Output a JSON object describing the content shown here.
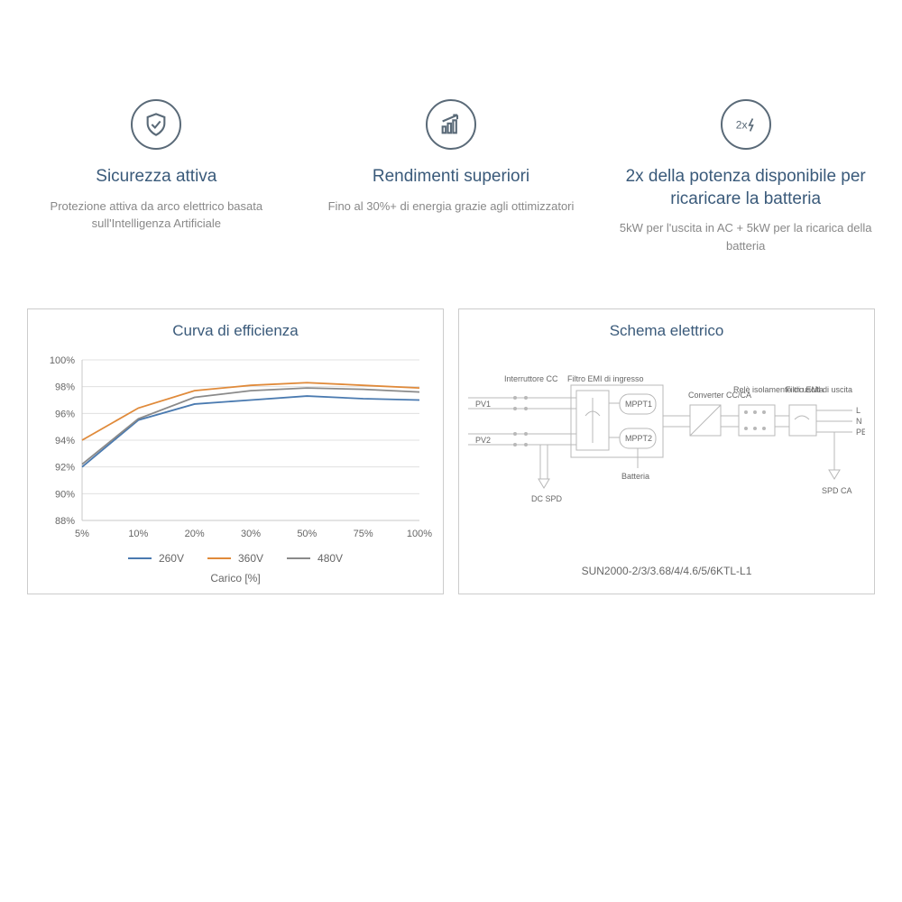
{
  "features": [
    {
      "title": "Sicurezza attiva",
      "desc": "Protezione attiva da arco elettrico basata sull'Intelligenza Artificiale"
    },
    {
      "title": "Rendimenti superiori",
      "desc": "Fino al 30%+ di energia grazie agli ottimizzatori"
    },
    {
      "title": "2x della potenza disponibile per ricaricare la batteria",
      "desc": "5kW per l'uscita in AC + 5kW per la ricarica della batteria"
    }
  ],
  "chart": {
    "title": "Curva di efficienza",
    "type": "line",
    "xlabel": "Carico [%]",
    "x_categories": [
      "5%",
      "10%",
      "20%",
      "30%",
      "50%",
      "75%",
      "100%"
    ],
    "y_ticks": [
      "88%",
      "90%",
      "92%",
      "94%",
      "96%",
      "98%",
      "100%"
    ],
    "ylim": [
      88,
      100
    ],
    "grid_color": "#e0e0e0",
    "axis_color": "#c8c8c8",
    "background_color": "#ffffff",
    "series": [
      {
        "name": "260V",
        "color": "#4a7ab0",
        "values": [
          92.0,
          95.5,
          96.7,
          97.0,
          97.3,
          97.1,
          97.0
        ]
      },
      {
        "name": "360V",
        "color": "#e08a3a",
        "values": [
          94.0,
          96.4,
          97.7,
          98.1,
          98.3,
          98.1,
          97.9
        ]
      },
      {
        "name": "480V",
        "color": "#8a8a8a",
        "values": [
          92.2,
          95.6,
          97.2,
          97.7,
          97.9,
          97.8,
          97.6
        ]
      }
    ],
    "legend_fontsize": 12,
    "label_fontsize": 11,
    "line_width": 1.8
  },
  "diagram": {
    "title": "Schema elettrico",
    "model": "SUN2000-2/3/3.68/4/4.6/5/6KTL-L1",
    "labels": {
      "switch": "Interruttore CC",
      "emi_in": "Filtro EMI di ingresso",
      "pv1": "PV1",
      "pv2": "PV2",
      "dcspd": "DC SPD",
      "mppt1": "MPPT1",
      "mppt2": "MPPT2",
      "battery": "Batteria",
      "converter": "Converter CC/CA",
      "relay": "Relè isolamento di uscita",
      "emi_out": "Filtro EMI di uscita",
      "L": "L",
      "N": "N",
      "PE": "PE",
      "spdca": "SPD CA"
    },
    "line_color": "#b8b8b8",
    "box_fill": "#ffffff",
    "text_color": "#666666"
  }
}
